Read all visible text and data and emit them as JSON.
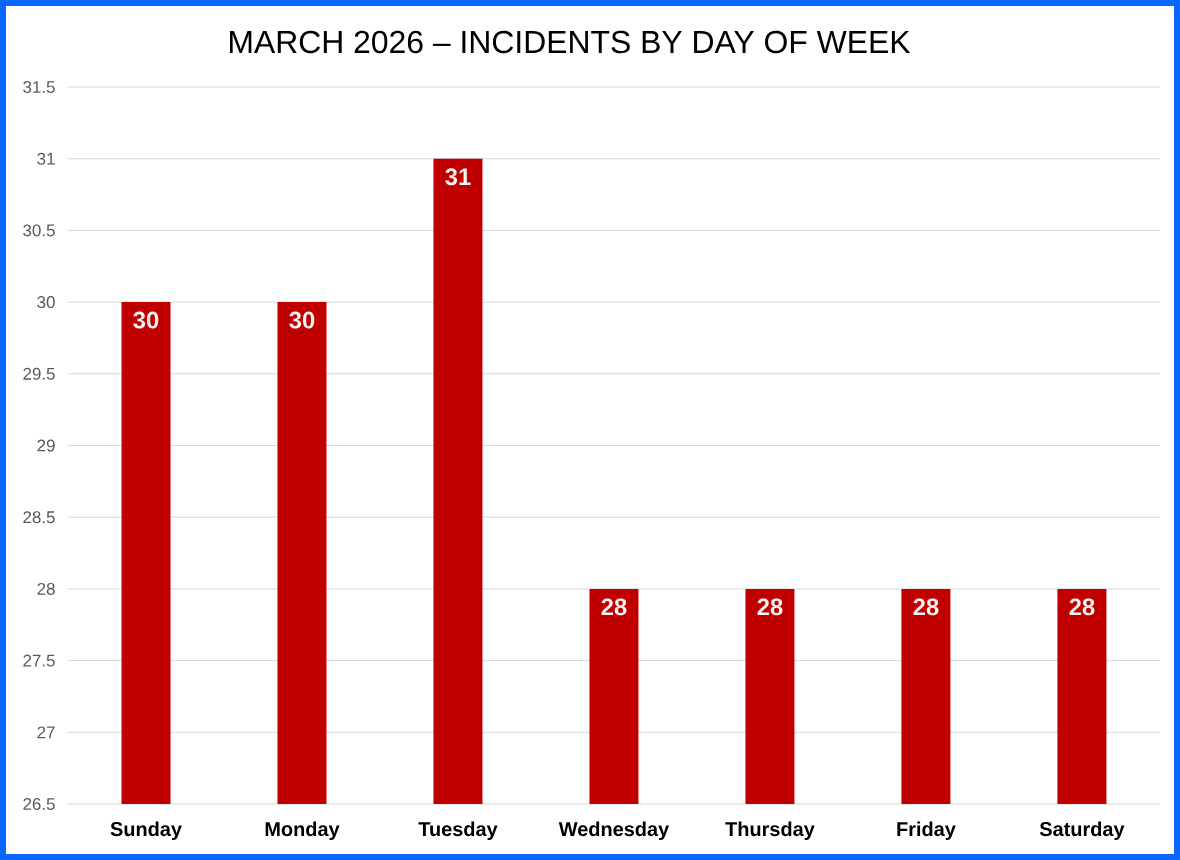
{
  "chart_data": {
    "type": "bar",
    "title": "MARCH 2026 – INCIDENTS BY DAY OF WEEK",
    "categories": [
      "Sunday",
      "Monday",
      "Tuesday",
      "Wednesday",
      "Thursday",
      "Friday",
      "Saturday"
    ],
    "values": [
      30,
      30,
      31,
      28,
      28,
      28,
      28
    ],
    "color": "#c00000",
    "ylim": [
      26.5,
      31.5
    ],
    "yticks": [
      26.5,
      27,
      27.5,
      28,
      28.5,
      29,
      29.5,
      30,
      30.5,
      31,
      31.5
    ],
    "grid": "y",
    "data_labels": true
  }
}
